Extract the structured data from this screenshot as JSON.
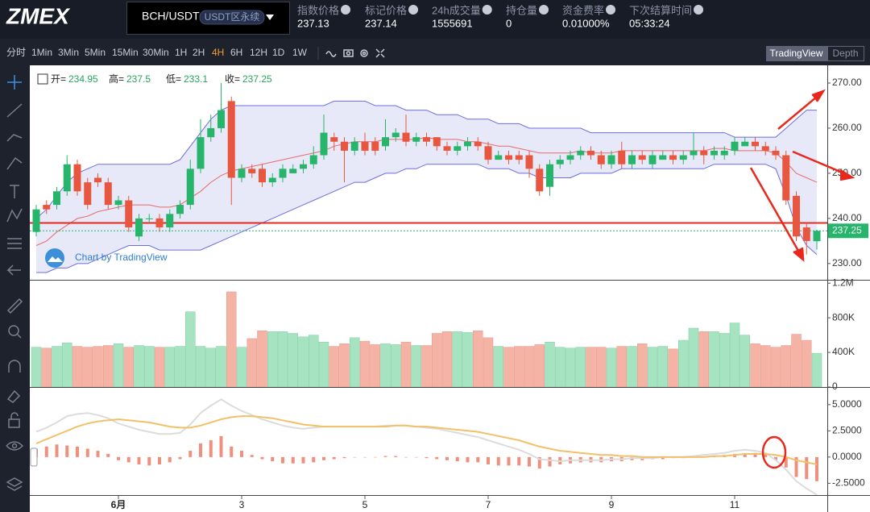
{
  "header": {
    "logo": "ZMEX",
    "symbol": "BCH/USDT",
    "contract": "USDT区永续",
    "stats": [
      {
        "label": "指数价格",
        "value": 237.13
      },
      {
        "label": "标记价格",
        "value": 237.14
      },
      {
        "label": "24h成交量",
        "value": 1555691
      },
      {
        "label": "持仓量",
        "value": 0
      },
      {
        "label": "资金费率",
        "value": "0.01000%"
      },
      {
        "label": "下次结算时间",
        "value": "05:33:24"
      }
    ]
  },
  "toolbar": {
    "intervals": [
      "分时",
      "1Min",
      "3Min",
      "5Min",
      "15Min",
      "30Min",
      "1H",
      "2H",
      "4H",
      "6H",
      "12H",
      "1D",
      "1W"
    ],
    "active": 8,
    "views": [
      "TradingView",
      "Depth"
    ],
    "active_view": 0
  },
  "chart_data": [
    {
      "type": "candlestick",
      "legend": [
        "开=",
        "高=",
        "低=",
        "收="
      ],
      "watermark": "Chart by TradingView",
      "up_color": "#26b56a",
      "down_color": "#e8563f",
      "categories": [
        null,
        null,
        null,
        null,
        null,
        null,
        null,
        null,
        "6月",
        null,
        null,
        null,
        null,
        null,
        null,
        null,
        null,
        null,
        null,
        null,
        "3",
        null,
        null,
        null,
        null,
        null,
        null,
        null,
        null,
        null,
        null,
        null,
        "5",
        null,
        null,
        null,
        null,
        null,
        null,
        null,
        null,
        null,
        null,
        null,
        "7",
        null,
        null,
        null,
        null,
        null,
        null,
        null,
        null,
        null,
        null,
        null,
        "9",
        null,
        null,
        null,
        null,
        null,
        null,
        null,
        null,
        null,
        null,
        null,
        "11",
        null,
        null,
        null,
        null,
        null,
        null,
        null,
        null
      ],
      "open": [
        237,
        243,
        243,
        246,
        252,
        248,
        249,
        248,
        243,
        244,
        236,
        240,
        240,
        238,
        241,
        243,
        251,
        258,
        260,
        266,
        249,
        251,
        251,
        248,
        249,
        250,
        251,
        252,
        254,
        258,
        257,
        255,
        257,
        257,
        256,
        258,
        259,
        257,
        258,
        258,
        256,
        255,
        256,
        257,
        256,
        253,
        254,
        254,
        254,
        251,
        247,
        252,
        253,
        254,
        255,
        254,
        252,
        255,
        252,
        254,
        252,
        253,
        254,
        253,
        254,
        255,
        254,
        254,
        255,
        256,
        257,
        256,
        255,
        254,
        245,
        238,
        234.95
      ],
      "high": [
        243,
        244,
        247,
        254,
        253,
        249,
        250,
        249,
        245,
        245,
        241,
        241,
        241,
        242,
        244,
        253,
        262,
        263,
        270,
        267,
        252,
        252,
        252,
        250,
        252,
        252,
        253,
        256,
        263,
        259,
        258,
        258,
        259,
        258,
        262,
        260,
        263,
        259,
        259,
        258,
        257,
        257,
        258,
        258,
        257,
        255,
        255,
        255,
        255,
        252,
        253,
        254,
        255,
        256,
        256,
        255,
        255,
        257,
        255,
        255,
        255,
        255,
        255,
        255,
        259,
        256,
        256,
        256,
        258,
        258,
        258,
        257,
        256,
        255,
        246,
        239,
        237.5
      ],
      "low": [
        236,
        241,
        242,
        245,
        245,
        242,
        247,
        242,
        242,
        237,
        235,
        239,
        237,
        237,
        240,
        242,
        250,
        257,
        259,
        243,
        248,
        249,
        247,
        247,
        248,
        250,
        250,
        251,
        253,
        255,
        248,
        254,
        254,
        254,
        255,
        257,
        256,
        256,
        256,
        255,
        254,
        254,
        255,
        255,
        252,
        253,
        252,
        252,
        249,
        245,
        245,
        251,
        252,
        253,
        253,
        251,
        251,
        251,
        251,
        252,
        251,
        253,
        252,
        252,
        253,
        252,
        253,
        253,
        254,
        256,
        255,
        254,
        253,
        243,
        235,
        232,
        233.1
      ],
      "close": [
        242,
        242,
        246,
        252,
        246,
        243,
        248,
        243,
        244,
        238,
        240,
        240,
        238,
        241,
        243,
        251,
        258,
        260,
        264,
        249,
        251,
        250,
        248,
        249,
        251,
        251,
        252,
        254,
        259,
        257,
        255,
        257,
        255,
        255,
        258,
        259,
        257,
        258,
        257,
        256,
        255,
        256,
        257,
        256,
        253,
        254,
        253,
        253,
        251,
        246,
        252,
        253,
        254,
        255,
        254,
        252,
        254,
        252,
        254,
        253,
        254,
        254,
        253,
        254,
        255,
        254,
        255,
        255,
        257,
        257,
        256,
        255,
        254,
        244,
        236,
        235,
        237.25
      ],
      "bb_upper": [
        240,
        242,
        245,
        248,
        250,
        251,
        252,
        252,
        252,
        252,
        252,
        252,
        252,
        252,
        253,
        256,
        259,
        262,
        264,
        265,
        265,
        265,
        265,
        265,
        265,
        265,
        265,
        265,
        265,
        266,
        266,
        266,
        266,
        265,
        265,
        265,
        264,
        264,
        264,
        263,
        263,
        263,
        262,
        262,
        262,
        261,
        261,
        261,
        260,
        260,
        260,
        260,
        260,
        260,
        259,
        259,
        259,
        259,
        259,
        259,
        259,
        259,
        259,
        259,
        259,
        259,
        259,
        259,
        258,
        258,
        258,
        258,
        258,
        260,
        262,
        264,
        264
      ],
      "bb_middle": [
        234,
        235,
        237,
        238.5,
        240,
        240.5,
        241.5,
        242,
        242.5,
        243,
        243,
        243,
        242.5,
        242.5,
        243,
        244.5,
        246,
        248,
        249.5,
        250.5,
        251,
        251.5,
        252,
        252.5,
        253,
        253.5,
        254,
        254.5,
        255,
        256,
        256.5,
        257,
        257,
        257,
        257.5,
        257.5,
        257.5,
        257.5,
        258,
        257.5,
        257.5,
        257.5,
        257,
        257,
        256.5,
        256,
        256,
        255.5,
        255,
        254.5,
        254.5,
        254.5,
        254.5,
        255,
        254.5,
        254.5,
        254.5,
        255,
        255,
        255,
        255,
        255,
        255,
        255,
        255,
        255,
        255.5,
        255.5,
        255,
        255,
        255,
        255,
        254.5,
        252.5,
        250,
        249,
        248
      ],
      "bb_lower": [
        228,
        228,
        229,
        229,
        230,
        230,
        231,
        232,
        233,
        234,
        234,
        234,
        233,
        233,
        233,
        233,
        233,
        234,
        235,
        236,
        237,
        238,
        239,
        240,
        241,
        242,
        243,
        244,
        245,
        246,
        247,
        248,
        248,
        249,
        250,
        250,
        251,
        251,
        252,
        252,
        252,
        252,
        252,
        252,
        251,
        251,
        251,
        250,
        250,
        249,
        249,
        249,
        249,
        250,
        250,
        250,
        250,
        251,
        251,
        251,
        251,
        251,
        251,
        251,
        251,
        251,
        252,
        252,
        252,
        252,
        252,
        252,
        251,
        245,
        238,
        234,
        232
      ],
      "hline": 239,
      "last_price": 237.25,
      "ylim": [
        226.4,
        273.75
      ],
      "yticks": [
        {
          "value": 230,
          "label": "230.00"
        },
        {
          "value": 240,
          "label": "240.00"
        },
        {
          "value": 250,
          "label": "250.00"
        },
        {
          "value": 260,
          "label": "260.00"
        },
        {
          "value": 270,
          "label": "270.00"
        }
      ]
    },
    {
      "type": "bar",
      "up_color": "#a6e3c1",
      "down_color": "#f5b3a6",
      "values": [
        460000,
        450000,
        470000,
        510000,
        470000,
        460000,
        470000,
        480000,
        500000,
        460000,
        480000,
        470000,
        460000,
        460000,
        470000,
        870000,
        470000,
        450000,
        470000,
        1100000,
        460000,
        560000,
        650000,
        640000,
        640000,
        620000,
        580000,
        600000,
        520000,
        470000,
        500000,
        570000,
        530000,
        490000,
        500000,
        490000,
        520000,
        480000,
        480000,
        620000,
        640000,
        640000,
        630000,
        650000,
        570000,
        470000,
        460000,
        470000,
        470000,
        490000,
        520000,
        460000,
        450000,
        460000,
        460000,
        460000,
        450000,
        470000,
        470000,
        500000,
        460000,
        470000,
        440000,
        540000,
        680000,
        640000,
        640000,
        620000,
        740000,
        600000,
        500000,
        480000,
        460000,
        480000,
        610000,
        540000,
        390000
      ],
      "ylim": [
        0,
        1230000
      ],
      "yticks": [
        0,
        {
          "value": 400000,
          "label": "400K"
        },
        {
          "value": 800000,
          "label": "800K"
        },
        {
          "value": 1200000,
          "label": "1.2M"
        }
      ]
    },
    {
      "type": "macd",
      "hist_color": "#ef8f7e",
      "series": [
        {
          "name": "DIF",
          "color": "#dcdcdc",
          "values": [
            2.4,
            2.8,
            3.3,
            3.9,
            4.1,
            4.2,
            4.0,
            3.7,
            3.2,
            2.9,
            2.6,
            2.4,
            2.2,
            2.2,
            2.3,
            3.1,
            4.2,
            4.9,
            5.5,
            4.9,
            4.4,
            4.0,
            3.6,
            3.3,
            3.0,
            2.8,
            2.7,
            2.8,
            2.9,
            2.9,
            2.9,
            2.9,
            2.9,
            2.9,
            3.0,
            3.0,
            3.0,
            2.9,
            2.8,
            2.7,
            2.5,
            2.3,
            2.1,
            1.9,
            1.6,
            1.3,
            1.0,
            0.7,
            0.3,
            -0.2,
            -0.3,
            -0.4,
            -0.3,
            -0.3,
            -0.3,
            -0.3,
            -0.2,
            -0.2,
            -0.1,
            -0.1,
            -0.1,
            0.0,
            0.0,
            0.0,
            0.1,
            0.2,
            0.3,
            0.4,
            0.6,
            0.7,
            0.6,
            0.4,
            -0.3,
            -1.2,
            -2.3,
            -3.0,
            -3.6
          ]
        },
        {
          "name": "DEA",
          "color": "#f3c06a",
          "values": [
            1.3,
            1.7,
            2.1,
            2.5,
            2.9,
            3.2,
            3.4,
            3.5,
            3.6,
            3.5,
            3.4,
            3.3,
            3.1,
            2.9,
            2.8,
            2.8,
            3.0,
            3.3,
            3.6,
            3.8,
            3.9,
            3.9,
            3.8,
            3.7,
            3.5,
            3.3,
            3.1,
            3.0,
            2.9,
            2.9,
            2.9,
            2.9,
            2.9,
            2.9,
            2.9,
            3.0,
            3.0,
            2.9,
            2.9,
            2.8,
            2.7,
            2.6,
            2.5,
            2.4,
            2.2,
            2.0,
            1.8,
            1.6,
            1.3,
            1.0,
            0.8,
            0.6,
            0.5,
            0.4,
            0.3,
            0.2,
            0.2,
            0.1,
            0.1,
            0.0,
            0.0,
            0.0,
            0.0,
            0.0,
            0.0,
            0.0,
            0.1,
            0.1,
            0.2,
            0.3,
            0.3,
            0.3,
            0.2,
            0.0,
            -0.3,
            -0.5,
            -0.7
          ]
        }
      ],
      "histogram": [
        0.8,
        1.0,
        1.2,
        1.1,
        1.0,
        0.8,
        0.6,
        0.3,
        -0.3,
        -0.5,
        -0.7,
        -0.8,
        -0.7,
        -0.5,
        -0.2,
        0.6,
        1.3,
        1.6,
        2.0,
        1.0,
        0.6,
        0.2,
        -0.2,
        -0.4,
        -0.6,
        -0.6,
        -0.6,
        -0.5,
        -0.3,
        -0.2,
        -0.1,
        0.0,
        0.0,
        0.0,
        0.1,
        0.1,
        0.0,
        0.0,
        -0.1,
        -0.2,
        -0.3,
        -0.4,
        -0.5,
        -0.5,
        -0.7,
        -0.8,
        -0.8,
        -0.8,
        -0.9,
        -1.1,
        -0.9,
        -0.7,
        -0.6,
        -0.5,
        -0.5,
        -0.5,
        -0.4,
        -0.4,
        -0.3,
        -0.3,
        -0.2,
        -0.2,
        -0.1,
        -0.1,
        0.0,
        0.0,
        0.1,
        0.2,
        0.3,
        0.3,
        0.4,
        0.3,
        -0.3,
        -1.0,
        -1.9,
        -2.1,
        -2.3
      ],
      "ylim": [
        -3.7,
        6.6
      ],
      "yticks": [
        {
          "value": -2.5,
          "label": "-2.5000"
        },
        {
          "value": 0,
          "label": "0.0000"
        },
        {
          "value": 2.5,
          "label": "2.5000"
        },
        {
          "value": 5,
          "label": "5.0000"
        }
      ]
    }
  ]
}
